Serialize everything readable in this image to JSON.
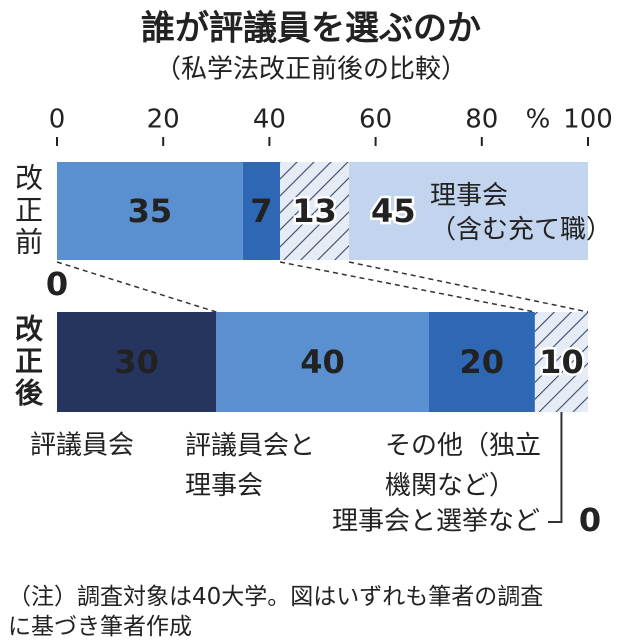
{
  "chart_data": {
    "type": "stacked_bar_horizontal",
    "title": "誰が評議員を選ぶのか",
    "subtitle": "（私学法改正前後の比較）",
    "x_label": "%",
    "categories": [
      "改正前",
      "改正後"
    ],
    "series": [
      {
        "name": "評議員会",
        "color": "#25355f",
        "values": [
          0,
          30
        ]
      },
      {
        "name": "評議員会と理事会",
        "color": "#5a8fd0",
        "values": [
          35,
          40
        ]
      },
      {
        "name": "その他（独立機関など）",
        "color": "#2e67b3",
        "values": [
          7,
          20
        ]
      },
      {
        "name": "理事会と選挙など",
        "color": "hatch",
        "values": [
          13,
          10
        ]
      },
      {
        "name": "理事会（含む充て職）",
        "color": "#c3d4ee",
        "values": [
          45,
          0
        ]
      }
    ],
    "xlim": [
      0,
      100
    ],
    "xticks": [
      0,
      20,
      40,
      60,
      80,
      100
    ],
    "note": "（注）調査対象は40大学。図はいずれも筆者の調査に基づき筆者作成"
  }
}
